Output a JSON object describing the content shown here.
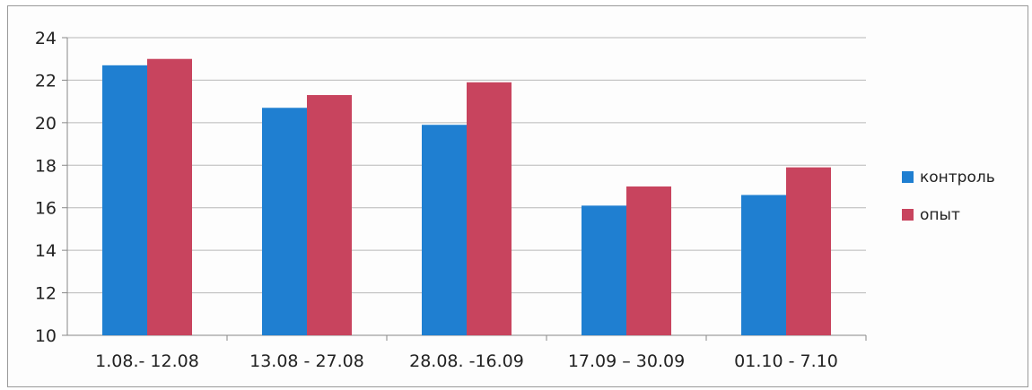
{
  "chart_data": {
    "type": "bar",
    "categories": [
      "1.08.- 12.08",
      "13.08 - 27.08",
      "28.08. -16.09",
      "17.09 – 30.09",
      "01.10 - 7.10"
    ],
    "series": [
      {
        "name": "контроль",
        "values": [
          22.7,
          20.7,
          19.9,
          16.1,
          16.6
        ],
        "color": "#1f7fd1"
      },
      {
        "name": "опыт",
        "values": [
          23.0,
          21.3,
          21.9,
          17.0,
          17.9
        ],
        "color": "#c8445e"
      }
    ],
    "ylim": [
      10,
      24
    ],
    "yticks": [
      "10",
      "12",
      "14",
      "16",
      "18",
      "20",
      "22",
      "24"
    ],
    "grid": true,
    "legend_position": "right"
  }
}
